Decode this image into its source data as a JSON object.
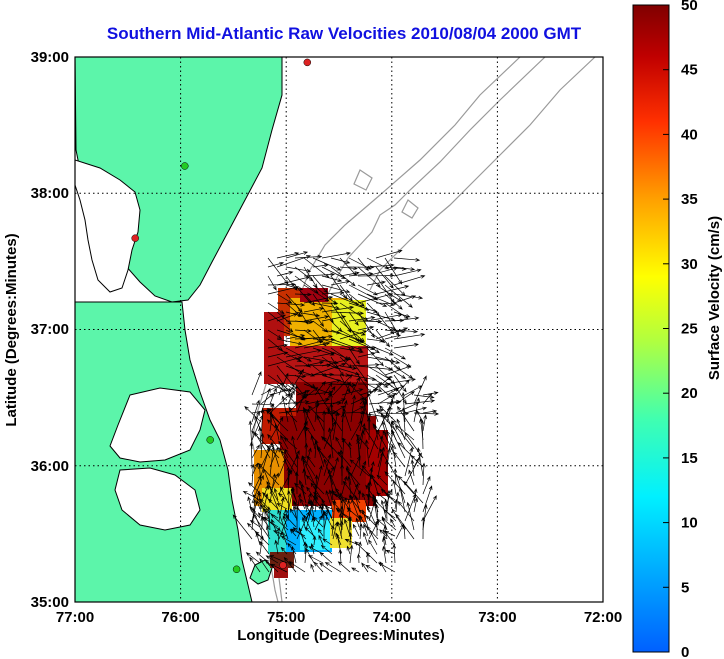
{
  "chart_data": {
    "type": "vector-field-map",
    "title": "Southern Mid-Atlantic Raw Velocities 2010/08/04 2000 GMT",
    "xlabel": "Longitude (Degrees:Minutes)",
    "ylabel": "Latitude (Degrees:Minutes)",
    "x_ticks": [
      "77:00",
      "76:00",
      "75:00",
      "74:00",
      "73:00",
      "72:00"
    ],
    "y_ticks": [
      "39:00",
      "38:00",
      "37:00",
      "36:00",
      "35:00"
    ],
    "xlim_west_lon": [
      77,
      72
    ],
    "ylim_lat": [
      35,
      39
    ],
    "grid": true,
    "colorbar": {
      "label": "Surface Velocity (cm/s)",
      "ticks": [
        "50",
        "45",
        "40",
        "35",
        "30",
        "25",
        "20",
        "15",
        "10",
        "5",
        "0"
      ],
      "range": [
        0,
        50
      ],
      "colormap": "jet"
    },
    "colors": {
      "title": "#1010e0",
      "land": "#5cf5aa",
      "coastline": "#000000",
      "bathymetry": "#9a9a9a",
      "site_marker_green": "#22cc22",
      "site_marker_red": "#dd2222"
    },
    "site_markers": [
      {
        "lon": 74.8,
        "lat": 38.96,
        "color": "red"
      },
      {
        "lon": 75.96,
        "lat": 38.2,
        "color": "green"
      },
      {
        "lon": 76.43,
        "lat": 37.67,
        "color": "red"
      },
      {
        "lon": 75.72,
        "lat": 36.19,
        "color": "green"
      },
      {
        "lon": 75.47,
        "lat": 35.24,
        "color": "green"
      },
      {
        "lon": 75.03,
        "lat": 35.27,
        "color": "red"
      }
    ]
  }
}
